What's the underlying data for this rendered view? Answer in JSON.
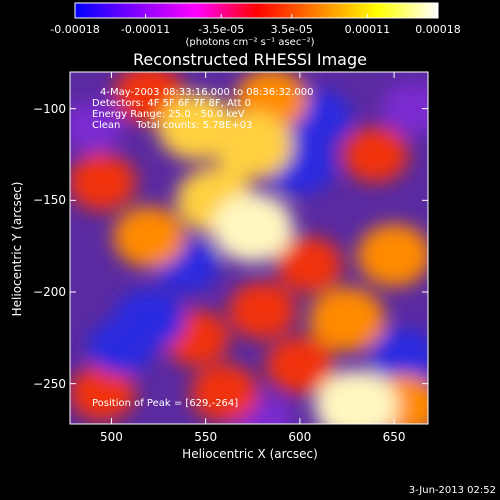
{
  "colorbar": {
    "tick_labels": [
      "-0.00018",
      "-0.00011",
      "-3.5e-05",
      "3.5e-05",
      "0.00011",
      "0.00018"
    ],
    "tick_values": [
      -0.00018,
      -0.00011,
      -3.5e-05,
      3.5e-05,
      0.00011,
      0.00018
    ],
    "range": [
      -0.00018,
      0.00018
    ],
    "units": "(photons cm⁻² s⁻¹ asec⁻²)",
    "colors": [
      "#0000ff",
      "#8000ff",
      "#ff00ff",
      "#ff0000",
      "#ff8000",
      "#ffff00",
      "#ffffff"
    ]
  },
  "chart_data": {
    "type": "heatmap",
    "title": "Reconstructed RHESSI Image",
    "xlabel": "Heliocentric X (arcsec)",
    "ylabel": "Heliocentric Y (arcsec)",
    "xlim": [
      478,
      668
    ],
    "ylim": [
      -272,
      -80
    ],
    "x_ticks": [
      500,
      550,
      600,
      650
    ],
    "y_ticks": [
      -100,
      -150,
      -200,
      -250
    ],
    "peak": [
      629,
      -264
    ],
    "blobs": [
      {
        "x": 520,
        "y": -92,
        "v": 0.65
      },
      {
        "x": 545,
        "y": -110,
        "v": 0.85
      },
      {
        "x": 575,
        "y": -120,
        "v": 0.9
      },
      {
        "x": 585,
        "y": -95,
        "v": 0.7
      },
      {
        "x": 555,
        "y": -150,
        "v": 0.85
      },
      {
        "x": 575,
        "y": -165,
        "v": 0.95
      },
      {
        "x": 520,
        "y": -170,
        "v": 0.7
      },
      {
        "x": 495,
        "y": -140,
        "v": 0.6
      },
      {
        "x": 640,
        "y": -125,
        "v": 0.55
      },
      {
        "x": 650,
        "y": -180,
        "v": 0.75
      },
      {
        "x": 625,
        "y": -215,
        "v": 0.8
      },
      {
        "x": 580,
        "y": -210,
        "v": 0.6
      },
      {
        "x": 605,
        "y": -185,
        "v": 0.55
      },
      {
        "x": 630,
        "y": -262,
        "v": 1.0
      },
      {
        "x": 655,
        "y": -262,
        "v": 0.75
      },
      {
        "x": 560,
        "y": -255,
        "v": 0.6
      },
      {
        "x": 495,
        "y": -255,
        "v": 0.55
      },
      {
        "x": 545,
        "y": -225,
        "v": 0.55
      },
      {
        "x": 600,
        "y": -240,
        "v": 0.6
      },
      {
        "x": 600,
        "y": -130,
        "v": -0.7
      },
      {
        "x": 610,
        "y": -105,
        "v": -0.55
      },
      {
        "x": 520,
        "y": -215,
        "v": -0.7
      },
      {
        "x": 505,
        "y": -230,
        "v": -0.55
      },
      {
        "x": 660,
        "y": -100,
        "v": -0.45
      },
      {
        "x": 540,
        "y": -185,
        "v": -0.5
      },
      {
        "x": 655,
        "y": -235,
        "v": -0.55
      },
      {
        "x": 490,
        "y": -110,
        "v": -0.4
      },
      {
        "x": 580,
        "y": -270,
        "v": -0.4
      }
    ]
  },
  "annotations": {
    "time_range": "4-May-2003 08:33:16.000 to 08:36:32.000",
    "detectors": "Detectors: 4F 5F 6F 7F 8F, Att 0",
    "energy": "Energy Range: 25.0 - 50.0 keV",
    "clean": "Clean     Total counts: 5.78E+03",
    "peak": "Position of Peak = [629,-264]"
  },
  "date_stamp": "3-Jun-2013 02:52"
}
